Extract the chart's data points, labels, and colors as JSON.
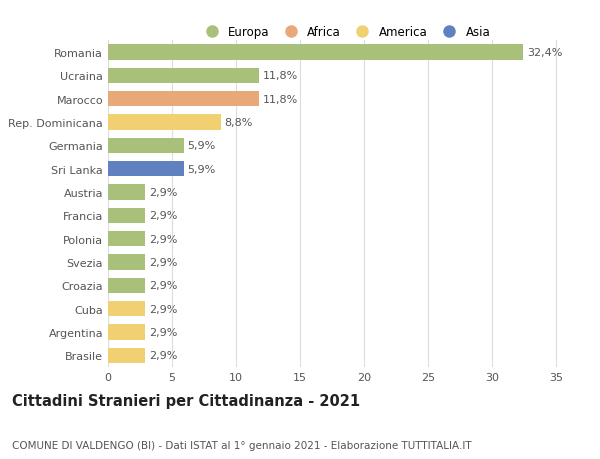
{
  "categories": [
    "Romania",
    "Ucraina",
    "Marocco",
    "Rep. Dominicana",
    "Germania",
    "Sri Lanka",
    "Austria",
    "Francia",
    "Polonia",
    "Svezia",
    "Croazia",
    "Cuba",
    "Argentina",
    "Brasile"
  ],
  "values": [
    32.4,
    11.8,
    11.8,
    8.8,
    5.9,
    5.9,
    2.9,
    2.9,
    2.9,
    2.9,
    2.9,
    2.9,
    2.9,
    2.9
  ],
  "labels": [
    "32,4%",
    "11,8%",
    "11,8%",
    "8,8%",
    "5,9%",
    "5,9%",
    "2,9%",
    "2,9%",
    "2,9%",
    "2,9%",
    "2,9%",
    "2,9%",
    "2,9%",
    "2,9%"
  ],
  "colors": [
    "#a8c07a",
    "#a8c07a",
    "#e8a878",
    "#f0d070",
    "#a8c07a",
    "#6080c0",
    "#a8c07a",
    "#a8c07a",
    "#a8c07a",
    "#a8c07a",
    "#a8c07a",
    "#f0d070",
    "#f0d070",
    "#f0d070"
  ],
  "legend_labels": [
    "Europa",
    "Africa",
    "America",
    "Asia"
  ],
  "legend_colors": [
    "#a8c07a",
    "#e8a878",
    "#f0d070",
    "#6080c0"
  ],
  "title": "Cittadini Stranieri per Cittadinanza - 2021",
  "subtitle": "COMUNE DI VALDENGO (BI) - Dati ISTAT al 1° gennaio 2021 - Elaborazione TUTTITALIA.IT",
  "xlim": [
    0,
    37
  ],
  "xticks": [
    0,
    5,
    10,
    15,
    20,
    25,
    30,
    35
  ],
  "bg_color": "#ffffff",
  "grid_color": "#dddddd",
  "bar_height": 0.65,
  "label_fontsize": 8,
  "tick_fontsize": 8,
  "title_fontsize": 10.5,
  "subtitle_fontsize": 7.5
}
